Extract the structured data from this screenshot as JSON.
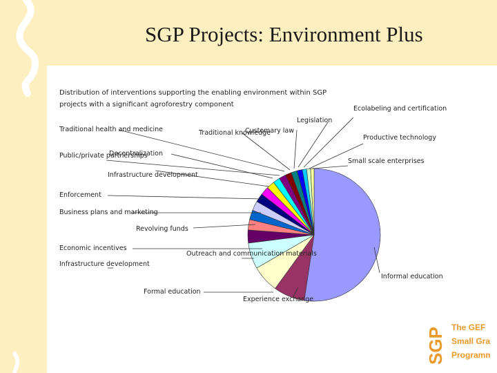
{
  "slide": {
    "title": "SGP Projects: Environment Plus"
  },
  "logo": {
    "text_vertical": "SGP",
    "lines": [
      "The GEF",
      "Small Grants",
      "Programme"
    ],
    "color": "#e89a2a"
  },
  "colors": {
    "background_band": "#fdefc0",
    "accent": "#f3a623"
  },
  "chart_data": {
    "type": "pie",
    "title_lines": [
      "Distribution of interventions supporting the enabling environment within SGP",
      "projects with a significant agroforestry component"
    ],
    "slices": [
      {
        "label": "Informal education",
        "value": 49.5,
        "color": "#9999ff"
      },
      {
        "label": "Experience exchange",
        "value": 7.2,
        "color": "#993366"
      },
      {
        "label": "Formal education",
        "value": 6.3,
        "color": "#ffffcc"
      },
      {
        "label": "Outreach and communication materials",
        "value": 6.0,
        "color": "#ccffff"
      },
      {
        "label": "Economic incentives",
        "value": 3.0,
        "color": "#660066"
      },
      {
        "label": "Infrastructure development",
        "value": 2.4,
        "color": "#ff8080"
      },
      {
        "label": "Revolving funds",
        "value": 2.2,
        "color": "#0066cc"
      },
      {
        "label": "Business plans and marketing",
        "value": 2.2,
        "color": "#ccccff"
      },
      {
        "label": "Enforcement",
        "value": 2.0,
        "color": "#000080"
      },
      {
        "label": "Infrastructure development",
        "value": 2.0,
        "color": "#ff00ff"
      },
      {
        "label": "Decentralization",
        "value": 1.8,
        "color": "#ffff00"
      },
      {
        "label": "Public/private partnerships",
        "value": 1.6,
        "color": "#00ffff"
      },
      {
        "label": "Traditional health and medicine",
        "value": 1.6,
        "color": "#800080"
      },
      {
        "label": "Traditional knowledge",
        "value": 1.4,
        "color": "#800000"
      },
      {
        "label": "Customary law",
        "value": 1.4,
        "color": "#008080"
      },
      {
        "label": "Legislation",
        "value": 1.2,
        "color": "#0000ff"
      },
      {
        "label": "Ecolabeling and certification",
        "value": 1.0,
        "color": "#00ccff"
      },
      {
        "label": "Productive technology",
        "value": 0.9,
        "color": "#ccffcc"
      },
      {
        "label": "Small scale enterprises",
        "value": 0.8,
        "color": "#ffff99"
      }
    ]
  }
}
